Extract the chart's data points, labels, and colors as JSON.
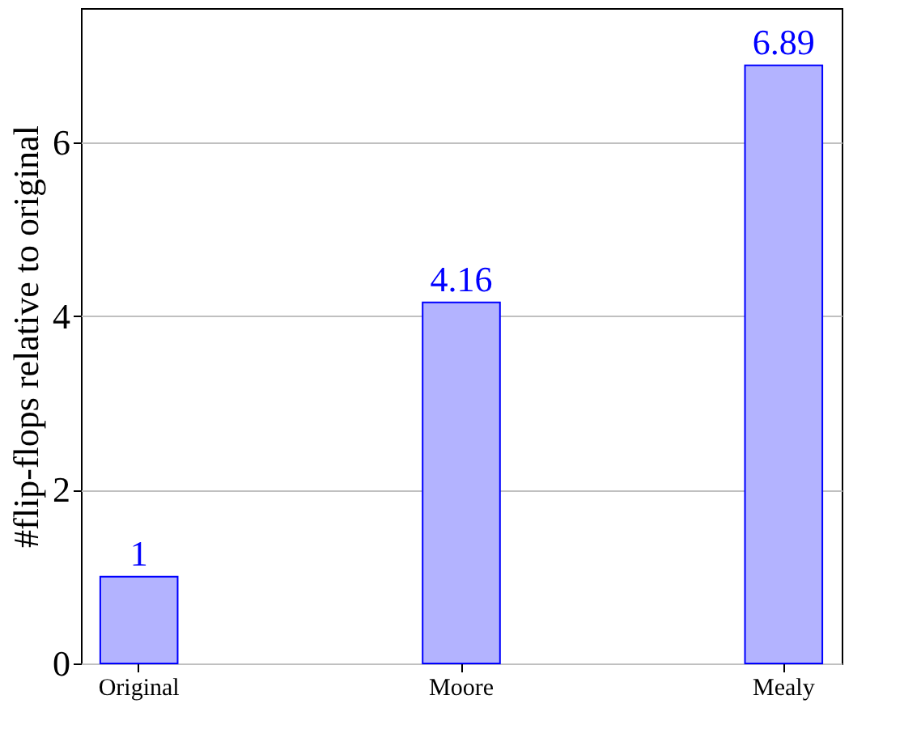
{
  "chart_data": {
    "type": "bar",
    "ylabel": "#flip-flops relative to original",
    "categories": [
      "Original",
      "Moore",
      "Mealy"
    ],
    "values": [
      1,
      4.16,
      6.89
    ],
    "color": "#b3b3ff",
    "ylim": [
      0,
      7.55
    ],
    "yticks": [
      0,
      2,
      4,
      6
    ],
    "grid": "y",
    "data_labels": true
  }
}
